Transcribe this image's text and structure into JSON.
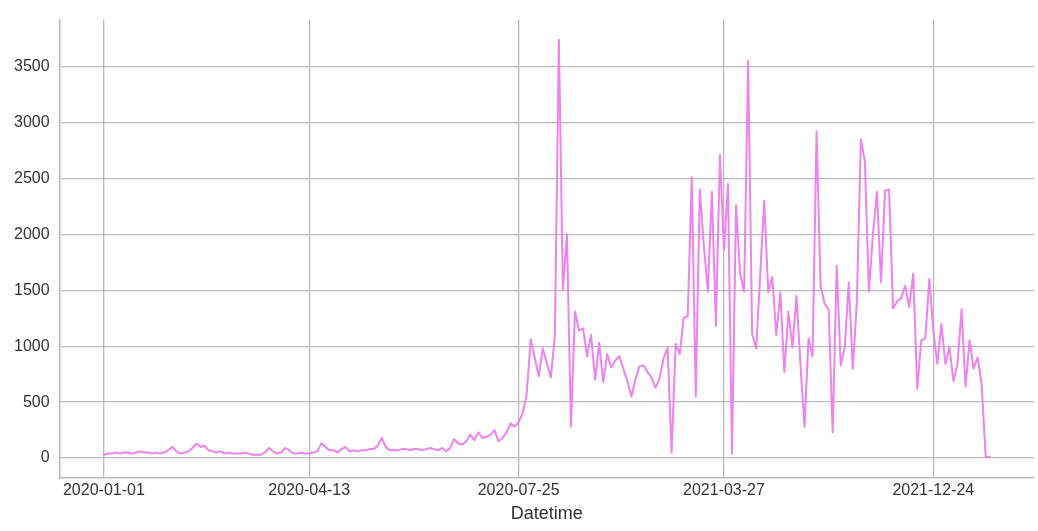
{
  "chart_data": {
    "type": "line",
    "xlabel": "Datetime",
    "color": "#ee82ee",
    "grid": true,
    "legend": false,
    "marker": "none",
    "line_style": "solid",
    "categories": [
      "2020-01-01",
      null,
      null,
      null,
      null,
      null,
      null,
      null,
      null,
      null,
      null,
      null,
      null,
      null,
      null,
      null,
      null,
      null,
      null,
      null,
      null,
      null,
      null,
      null,
      null,
      null,
      null,
      null,
      null,
      null,
      null,
      null,
      null,
      null,
      null,
      null,
      null,
      null,
      null,
      null,
      null,
      null,
      null,
      null,
      null,
      null,
      null,
      null,
      null,
      null,
      null,
      "2020-04-13",
      null,
      null,
      null,
      null,
      null,
      null,
      null,
      null,
      null,
      null,
      null,
      null,
      null,
      null,
      null,
      null,
      null,
      null,
      null,
      null,
      null,
      null,
      null,
      null,
      null,
      null,
      null,
      null,
      null,
      null,
      null,
      null,
      null,
      null,
      null,
      null,
      null,
      null,
      null,
      null,
      null,
      null,
      null,
      null,
      null,
      null,
      null,
      null,
      null,
      null,
      null,
      "2020-07-25",
      null,
      null,
      null,
      null,
      null,
      null,
      null,
      null,
      null,
      null,
      null,
      null,
      null,
      null,
      null,
      null,
      null,
      null,
      null,
      null,
      null,
      null,
      null,
      null,
      null,
      null,
      null,
      null,
      null,
      null,
      null,
      null,
      null,
      null,
      null,
      null,
      null,
      null,
      null,
      null,
      null,
      null,
      null,
      null,
      null,
      null,
      null,
      null,
      null,
      null,
      "2021-03-27",
      null,
      null,
      null,
      null,
      null,
      null,
      null,
      null,
      null,
      null,
      null,
      null,
      null,
      null,
      null,
      null,
      null,
      null,
      null,
      null,
      null,
      null,
      null,
      null,
      null,
      null,
      null,
      null,
      null,
      null,
      null,
      null,
      null,
      null,
      null,
      null,
      null,
      null,
      null,
      null,
      null,
      null,
      null,
      null,
      null,
      null,
      null,
      null,
      null,
      null,
      null,
      "2021-12-24",
      null,
      null,
      null,
      null,
      null,
      null,
      null,
      null,
      null,
      null,
      null,
      null,
      null,
      null
    ],
    "ylim": [
      -180,
      3920
    ],
    "yticks": [
      0,
      500,
      1000,
      1500,
      2000,
      2500,
      3000,
      3500
    ],
    "values": [
      30,
      40,
      40,
      50,
      40,
      50,
      50,
      40,
      50,
      60,
      50,
      50,
      40,
      50,
      40,
      50,
      70,
      100,
      60,
      40,
      50,
      60,
      90,
      130,
      100,
      110,
      70,
      60,
      50,
      60,
      40,
      50,
      40,
      40,
      40,
      50,
      40,
      30,
      30,
      30,
      50,
      90,
      60,
      40,
      50,
      90,
      70,
      40,
      40,
      50,
      40,
      40,
      50,
      60,
      130,
      100,
      70,
      70,
      50,
      80,
      100,
      60,
      70,
      60,
      70,
      70,
      80,
      80,
      110,
      180,
      100,
      70,
      70,
      70,
      80,
      80,
      70,
      80,
      80,
      70,
      80,
      90,
      80,
      70,
      90,
      60,
      90,
      170,
      130,
      120,
      150,
      210,
      160,
      230,
      180,
      190,
      210,
      250,
      150,
      180,
      230,
      310,
      280,
      320,
      400,
      570,
      1060,
      900,
      730,
      980,
      850,
      720,
      1090,
      3740,
      1500,
      2000,
      280,
      1310,
      1140,
      1160,
      910,
      1100,
      700,
      1030,
      680,
      930,
      810,
      870,
      910,
      800,
      690,
      550,
      700,
      820,
      830,
      770,
      720,
      630,
      710,
      890,
      990,
      50,
      1020,
      930,
      1250,
      1270,
      2510,
      550,
      2400,
      1900,
      1490,
      2380,
      1180,
      2710,
      1860,
      2450,
      40,
      2260,
      1650,
      1490,
      3550,
      1110,
      980,
      1640,
      2300,
      1480,
      1620,
      1100,
      1480,
      770,
      1310,
      990,
      1450,
      840,
      280,
      1070,
      910,
      2920,
      1540,
      1380,
      1330,
      230,
      1720,
      830,
      990,
      1570,
      800,
      1390,
      2850,
      2650,
      1490,
      2000,
      2380,
      1570,
      2390,
      2400,
      1340,
      1400,
      1430,
      1540,
      1350,
      1650,
      620,
      1050,
      1070,
      1600,
      1140,
      840,
      1200,
      840,
      990,
      690,
      840,
      1330,
      640,
      1050,
      800,
      900,
      660,
      10,
      10
    ]
  }
}
